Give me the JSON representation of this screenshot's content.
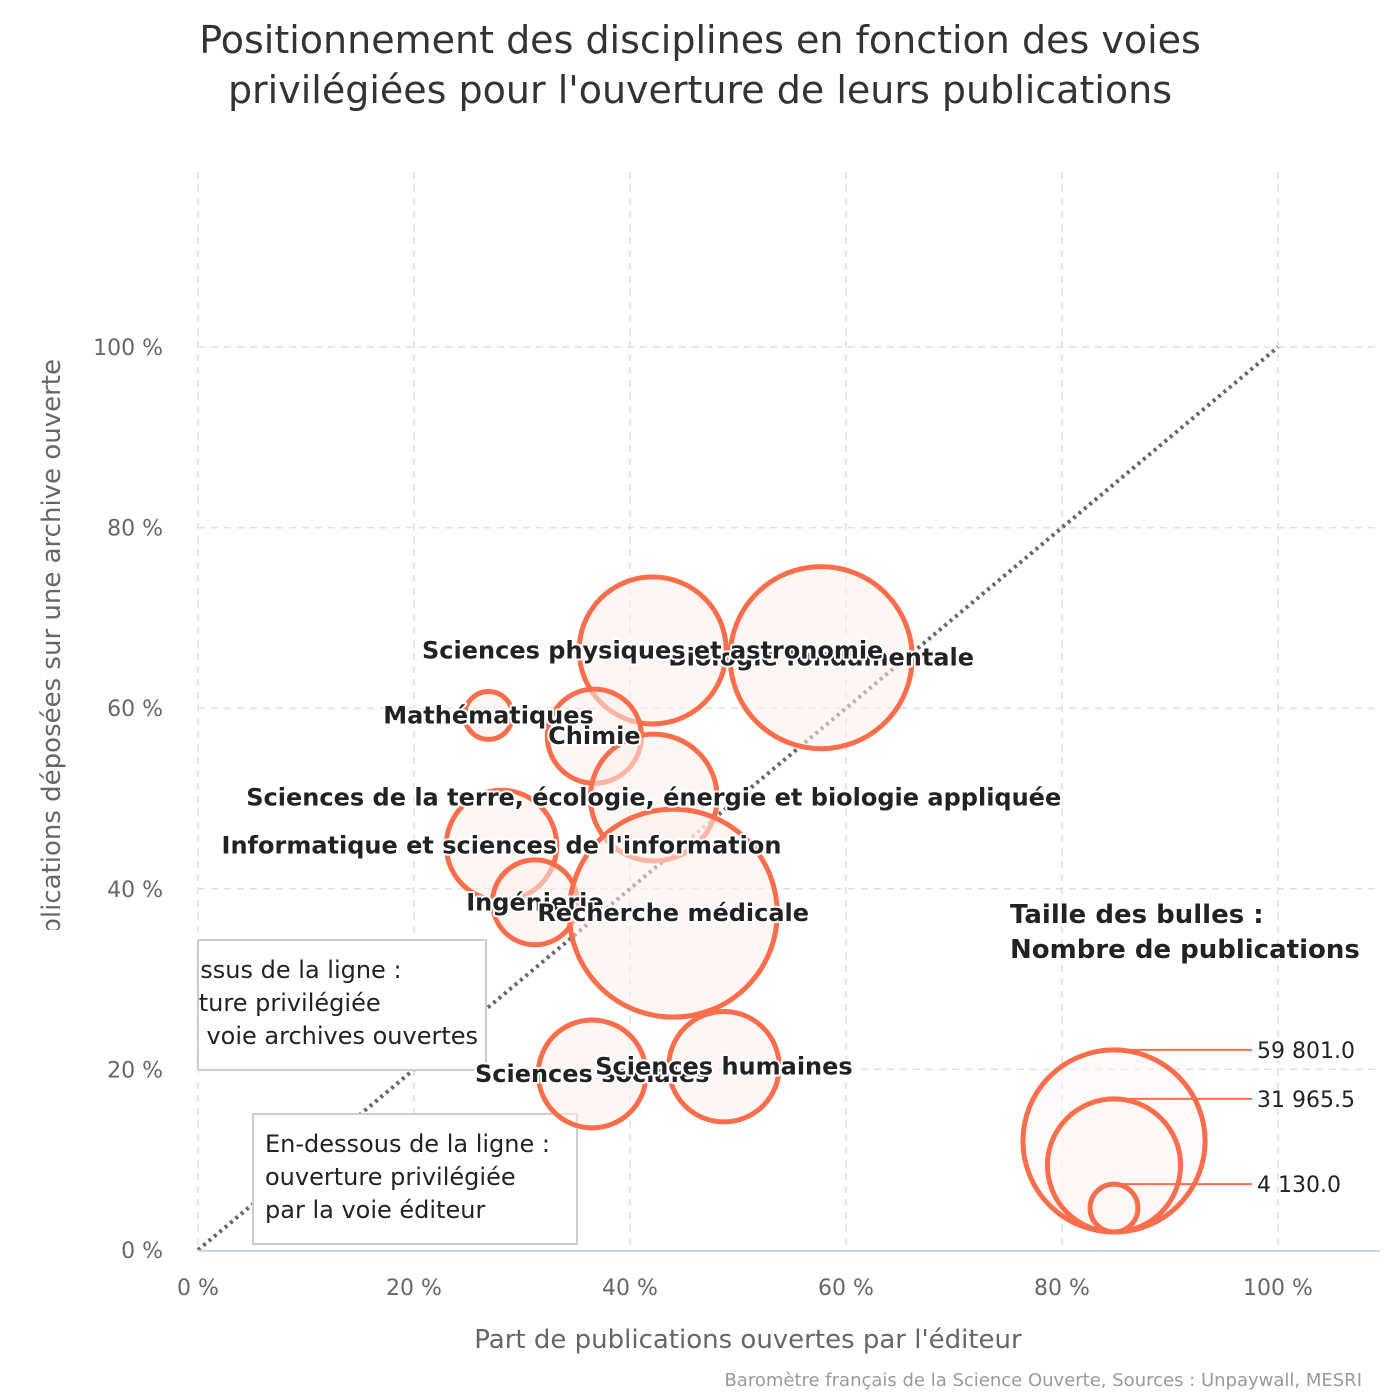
{
  "chart_data": {
    "type": "bubble",
    "title": "Positionnement des disciplines en fonction des voies privilégiées pour l'ouverture de leurs publications",
    "title_lines": [
      "Positionnement des disciplines en fonction des voies",
      "privilégiées pour l'ouverture de leurs publications"
    ],
    "xlabel": "Part de publications ouvertes par l'éditeur",
    "ylabel": "Part de publications déposées sur une archive ouverte",
    "xlim": [
      0,
      100
    ],
    "ylim": [
      0,
      100
    ],
    "x_ticks": [
      "0 %",
      "20 %",
      "40 %",
      "60 %",
      "80 %",
      "100 %"
    ],
    "y_ticks": [
      "0 %",
      "20 %",
      "40 %",
      "60 %",
      "80 %",
      "100 %"
    ],
    "grid": true,
    "diagonal": {
      "from": [
        0,
        0
      ],
      "to": [
        100,
        100
      ],
      "style": "dotted"
    },
    "points": [
      {
        "label": "Biologie fondamentale",
        "x": 57.7,
        "y": 65.6,
        "size": 59801
      },
      {
        "label": "Sciences physiques et astronomie",
        "x": 42.1,
        "y": 66.4,
        "size": 39000
      },
      {
        "label": "Mathématiques",
        "x": 26.9,
        "y": 59.2,
        "size": 4130
      },
      {
        "label": "Chimie",
        "x": 36.7,
        "y": 56.9,
        "size": 16000
      },
      {
        "label": "Sciences de la terre, écologie, énergie et biologie appliquée",
        "x": 42.2,
        "y": 50.1,
        "size": 29000
      },
      {
        "label": "Informatique et sciences de l'information",
        "x": 28.1,
        "y": 44.8,
        "size": 22000
      },
      {
        "label": "Ingénierie",
        "x": 31.2,
        "y": 38.5,
        "size": 13000
      },
      {
        "label": "Recherche médicale",
        "x": 44.0,
        "y": 37.3,
        "size": 78000
      },
      {
        "label": "Sciences sociales",
        "x": 36.5,
        "y": 19.5,
        "size": 21000
      },
      {
        "label": "Sciences humaines",
        "x": 48.7,
        "y": 20.3,
        "size": 22000
      }
    ],
    "size_legend": {
      "title_lines": [
        "Taille des bulles :",
        "Nombre de publications"
      ],
      "values": [
        59801.0,
        31965.5,
        4130.0
      ],
      "labels": [
        "59 801.0",
        "31 965.5",
        "4 130.0"
      ]
    },
    "annotations": [
      {
        "lines": [
          "Au-dessus de la ligne :",
          "ouverture privilégiée",
          "par la voie archives ouvertes"
        ],
        "x": 0,
        "y": 32
      },
      {
        "lines": [
          "En-dessous de la ligne :",
          "ouverture privilégiée",
          "par la voie éditeur"
        ],
        "x": 5,
        "y": 14.5
      }
    ]
  },
  "credits": "Baromètre français de la Science Ouverte, Sources : Unpaywall, MESRI",
  "colors": {
    "bubble_stroke": "#fc6d4c",
    "bubble_fill": "#fdeeea",
    "text": "#222222",
    "axis_text": "#666666",
    "grid": "#e0e0e0",
    "diagonal": "#666666"
  }
}
